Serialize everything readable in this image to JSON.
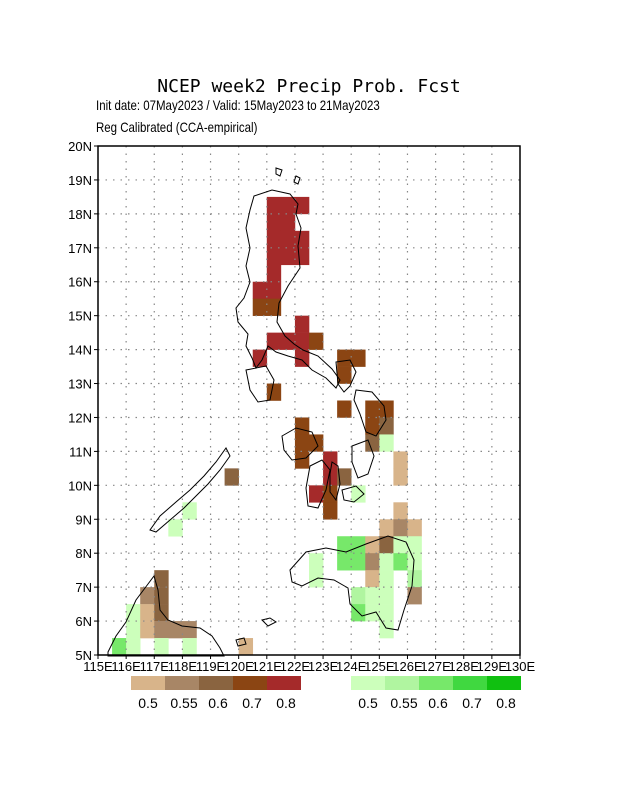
{
  "title": "NCEP week2 Precip Prob. Fcst",
  "subtitle_line1": "Init date: 07May2023 / Valid: 15May2023 to 21May2023",
  "subtitle_line2": "Reg Calibrated (CCA-empirical)",
  "map": {
    "lon_range": [
      115,
      130
    ],
    "lat_range": [
      5,
      20
    ],
    "grid": "dotted",
    "lat_labels": [
      "5N",
      "6N",
      "7N",
      "8N",
      "9N",
      "10N",
      "11N",
      "12N",
      "13N",
      "14N",
      "15N",
      "16N",
      "17N",
      "18N",
      "19N",
      "20N"
    ],
    "lon_labels": [
      "115E",
      "116E",
      "117E",
      "118E",
      "119E",
      "120E",
      "121E",
      "122E",
      "123E",
      "124E",
      "125E",
      "126E",
      "127E",
      "128E",
      "129E",
      "130E"
    ]
  },
  "legend": {
    "dry": {
      "colors": [
        "#d8b48a",
        "#a88666",
        "#8a6440",
        "#8b4513",
        "#a52a2a"
      ],
      "labels": [
        "0.5",
        "0.55",
        "0.6",
        "0.7",
        "0.8"
      ]
    },
    "wet": {
      "colors": [
        "#ccffbb",
        "#b0f5a0",
        "#77e86a",
        "#40d840",
        "#10c010"
      ],
      "labels": [
        "0.5",
        "0.55",
        "0.6",
        "0.7",
        "0.8"
      ]
    }
  },
  "chart_data": {
    "type": "heatmap",
    "cell_size_deg": 0.5,
    "classes": {
      "d1": "dry 0.5",
      "d2": "dry 0.55",
      "d3": "dry 0.6",
      "d4": "dry 0.7",
      "d5": "dry 0.8",
      "w1": "wet 0.5",
      "w2": "wet 0.55",
      "w3": "wet 0.6",
      "w4": "wet 0.7",
      "w5": "wet 0.8"
    },
    "cells": [
      {
        "lon": 121.0,
        "lat": 18.0,
        "c": "d5"
      },
      {
        "lon": 121.5,
        "lat": 18.0,
        "c": "d5"
      },
      {
        "lon": 122.0,
        "lat": 18.0,
        "c": "d5"
      },
      {
        "lon": 121.0,
        "lat": 17.5,
        "c": "d5"
      },
      {
        "lon": 121.5,
        "lat": 17.5,
        "c": "d5"
      },
      {
        "lon": 121.0,
        "lat": 17.0,
        "c": "d5"
      },
      {
        "lon": 121.5,
        "lat": 17.0,
        "c": "d5"
      },
      {
        "lon": 122.0,
        "lat": 17.0,
        "c": "d5"
      },
      {
        "lon": 121.0,
        "lat": 16.5,
        "c": "d5"
      },
      {
        "lon": 121.5,
        "lat": 16.5,
        "c": "d5"
      },
      {
        "lon": 122.0,
        "lat": 16.5,
        "c": "d5"
      },
      {
        "lon": 121.0,
        "lat": 16.0,
        "c": "d5"
      },
      {
        "lon": 120.5,
        "lat": 15.5,
        "c": "d5"
      },
      {
        "lon": 121.0,
        "lat": 15.5,
        "c": "d5"
      },
      {
        "lon": 120.5,
        "lat": 15.0,
        "c": "d4"
      },
      {
        "lon": 121.0,
        "lat": 15.0,
        "c": "d4"
      },
      {
        "lon": 122.0,
        "lat": 14.5,
        "c": "d5"
      },
      {
        "lon": 121.0,
        "lat": 14.0,
        "c": "d5"
      },
      {
        "lon": 121.5,
        "lat": 14.0,
        "c": "d5"
      },
      {
        "lon": 122.0,
        "lat": 14.0,
        "c": "d5"
      },
      {
        "lon": 122.5,
        "lat": 14.0,
        "c": "d4"
      },
      {
        "lon": 120.5,
        "lat": 13.5,
        "c": "d5"
      },
      {
        "lon": 122.0,
        "lat": 13.5,
        "c": "d5"
      },
      {
        "lon": 123.5,
        "lat": 13.5,
        "c": "d4"
      },
      {
        "lon": 124.0,
        "lat": 13.5,
        "c": "d4"
      },
      {
        "lon": 123.5,
        "lat": 13.0,
        "c": "d4"
      },
      {
        "lon": 121.0,
        "lat": 12.5,
        "c": "d4"
      },
      {
        "lon": 123.5,
        "lat": 12.0,
        "c": "d4"
      },
      {
        "lon": 124.5,
        "lat": 12.0,
        "c": "d4"
      },
      {
        "lon": 125.0,
        "lat": 12.0,
        "c": "d4"
      },
      {
        "lon": 122.0,
        "lat": 11.5,
        "c": "d4"
      },
      {
        "lon": 124.5,
        "lat": 11.5,
        "c": "d4"
      },
      {
        "lon": 125.0,
        "lat": 11.5,
        "c": "d3"
      },
      {
        "lon": 122.0,
        "lat": 11.0,
        "c": "d4"
      },
      {
        "lon": 122.5,
        "lat": 11.0,
        "c": "d4"
      },
      {
        "lon": 124.5,
        "lat": 11.0,
        "c": "d3"
      },
      {
        "lon": 125.0,
        "lat": 11.0,
        "c": "w1"
      },
      {
        "lon": 122.0,
        "lat": 10.5,
        "c": "d4"
      },
      {
        "lon": 123.0,
        "lat": 10.5,
        "c": "d5"
      },
      {
        "lon": 125.5,
        "lat": 10.5,
        "c": "d1"
      },
      {
        "lon": 119.5,
        "lat": 10.0,
        "c": "d3"
      },
      {
        "lon": 123.0,
        "lat": 10.0,
        "c": "d5"
      },
      {
        "lon": 123.5,
        "lat": 10.0,
        "c": "d3"
      },
      {
        "lon": 125.5,
        "lat": 10.0,
        "c": "d1"
      },
      {
        "lon": 122.5,
        "lat": 9.5,
        "c": "d5"
      },
      {
        "lon": 123.0,
        "lat": 9.5,
        "c": "d4"
      },
      {
        "lon": 124.0,
        "lat": 9.5,
        "c": "w1"
      },
      {
        "lon": 123.0,
        "lat": 9.0,
        "c": "d4"
      },
      {
        "lon": 125.5,
        "lat": 9.0,
        "c": "d1"
      },
      {
        "lon": 118.0,
        "lat": 9.0,
        "c": "w1"
      },
      {
        "lon": 117.5,
        "lat": 8.5,
        "c": "w1"
      },
      {
        "lon": 125.0,
        "lat": 8.5,
        "c": "d1"
      },
      {
        "lon": 125.5,
        "lat": 8.5,
        "c": "d2"
      },
      {
        "lon": 126.0,
        "lat": 8.5,
        "c": "d1"
      },
      {
        "lon": 123.5,
        "lat": 8.0,
        "c": "w3"
      },
      {
        "lon": 124.0,
        "lat": 8.0,
        "c": "w3"
      },
      {
        "lon": 124.5,
        "lat": 8.0,
        "c": "d1"
      },
      {
        "lon": 125.0,
        "lat": 8.0,
        "c": "d3"
      },
      {
        "lon": 125.5,
        "lat": 8.0,
        "c": "w1"
      },
      {
        "lon": 126.0,
        "lat": 8.0,
        "c": "w1"
      },
      {
        "lon": 122.5,
        "lat": 7.5,
        "c": "w1"
      },
      {
        "lon": 123.5,
        "lat": 7.5,
        "c": "w3"
      },
      {
        "lon": 124.0,
        "lat": 7.5,
        "c": "w3"
      },
      {
        "lon": 124.5,
        "lat": 7.5,
        "c": "d2"
      },
      {
        "lon": 125.0,
        "lat": 7.5,
        "c": "w1"
      },
      {
        "lon": 125.5,
        "lat": 7.5,
        "c": "w3"
      },
      {
        "lon": 126.0,
        "lat": 7.5,
        "c": "w1"
      },
      {
        "lon": 117.0,
        "lat": 7.0,
        "c": "d3"
      },
      {
        "lon": 122.5,
        "lat": 7.0,
        "c": "w1"
      },
      {
        "lon": 124.5,
        "lat": 7.0,
        "c": "d1"
      },
      {
        "lon": 125.0,
        "lat": 7.0,
        "c": "w1"
      },
      {
        "lon": 126.0,
        "lat": 7.0,
        "c": "w2"
      },
      {
        "lon": 116.5,
        "lat": 6.5,
        "c": "d2"
      },
      {
        "lon": 117.0,
        "lat": 6.5,
        "c": "d3"
      },
      {
        "lon": 124.0,
        "lat": 6.5,
        "c": "w2"
      },
      {
        "lon": 124.5,
        "lat": 6.5,
        "c": "w1"
      },
      {
        "lon": 125.0,
        "lat": 6.5,
        "c": "w1"
      },
      {
        "lon": 126.0,
        "lat": 6.5,
        "c": "d2"
      },
      {
        "lon": 116.0,
        "lat": 6.0,
        "c": "w1"
      },
      {
        "lon": 116.5,
        "lat": 6.0,
        "c": "d1"
      },
      {
        "lon": 117.0,
        "lat": 6.0,
        "c": "d3"
      },
      {
        "lon": 124.0,
        "lat": 6.0,
        "c": "w3"
      },
      {
        "lon": 124.5,
        "lat": 6.0,
        "c": "w1"
      },
      {
        "lon": 125.0,
        "lat": 6.0,
        "c": "w1"
      },
      {
        "lon": 116.0,
        "lat": 5.5,
        "c": "w1"
      },
      {
        "lon": 116.5,
        "lat": 5.5,
        "c": "d1"
      },
      {
        "lon": 117.0,
        "lat": 5.5,
        "c": "d2"
      },
      {
        "lon": 117.5,
        "lat": 5.5,
        "c": "d2"
      },
      {
        "lon": 118.0,
        "lat": 5.5,
        "c": "d2"
      },
      {
        "lon": 125.0,
        "lat": 5.5,
        "c": "w1"
      },
      {
        "lon": 115.5,
        "lat": 5.0,
        "c": "w3"
      },
      {
        "lon": 116.0,
        "lat": 5.0,
        "c": "w1"
      },
      {
        "lon": 117.0,
        "lat": 5.0,
        "c": "w1"
      },
      {
        "lon": 118.0,
        "lat": 5.0,
        "c": "w1"
      },
      {
        "lon": 120.0,
        "lat": 5.0,
        "c": "d1"
      }
    ]
  }
}
